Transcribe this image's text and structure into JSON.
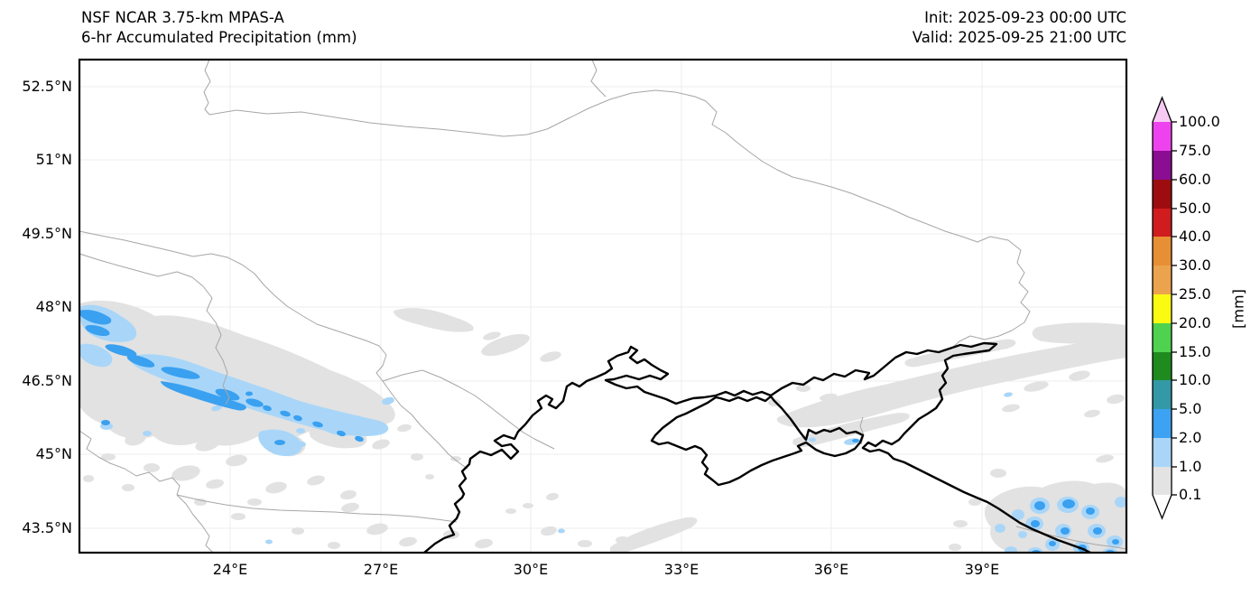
{
  "header": {
    "model_title": "NSF NCAR 3.75-km MPAS-A",
    "product_title": "6-hr Accumulated Precipitation (mm)",
    "init_time": "Init: 2025-09-23 00:00 UTC",
    "valid_time": "Valid: 2025-09-25 21:00 UTC"
  },
  "map_axes": {
    "lat_labels": [
      "52.5°N",
      "51°N",
      "49.5°N",
      "48°N",
      "46.5°N",
      "45°N",
      "43.5°N"
    ],
    "lon_labels": [
      "24°E",
      "27°E",
      "30°E",
      "33°E",
      "36°E",
      "39°E"
    ]
  },
  "colorbar": {
    "unit": "[mm]",
    "tick_labels": [
      "100.0",
      "75.0",
      "60.0",
      "50.0",
      "40.0",
      "30.0",
      "25.0",
      "20.0",
      "15.0",
      "10.0",
      "5.0",
      "2.0",
      "1.0",
      "0.1"
    ],
    "levels_mm": [
      0.1,
      1.0,
      2.0,
      5.0,
      10.0,
      15.0,
      20.0,
      25.0,
      30.0,
      40.0,
      50.0,
      60.0,
      75.0,
      100.0
    ],
    "segment_colors_top_to_bottom": [
      "#ee42ee",
      "#8a0d92",
      "#9d0d10",
      "#d01c1e",
      "#e78f35",
      "#eca34d",
      "#fbfb12",
      "#4fd24f",
      "#1f8b1f",
      "#3499a6",
      "#3ca2f1",
      "#a9d6f8",
      "#e3e3e3"
    ],
    "over_color": "#f7c9f3",
    "under_color": "#ffffff"
  },
  "map_palette": {
    "precip_trace": "#e2e2e2",
    "precip_light": "#a9d6f8",
    "precip_moderate": "#3aa0f0",
    "coastline": "#000000",
    "border": "#a6a6a6",
    "gridline": "#ececec",
    "frame": "#000000"
  },
  "chart_data": {
    "type": "map",
    "title": "6-hr Accumulated Precipitation (mm)",
    "colorbar_levels_mm": [
      0.1,
      1,
      2,
      5,
      10,
      15,
      20,
      25,
      30,
      40,
      50,
      60,
      75,
      100
    ],
    "lat_range_deg_n": [
      43.0,
      53.0
    ],
    "lon_range_deg_e": [
      21.0,
      42.0
    ],
    "visible_precipitation_regions": [
      {
        "area": "Carpathians / western edge (~21-27°E, 45-48.5°N)",
        "band_mm": "0.1 to 5"
      },
      {
        "area": "Sea of Azov and northeast streaks",
        "band_mm": "0.1 to 1"
      },
      {
        "area": "Caucasus coast, southeast corner",
        "band_mm": "0.1 to 5"
      },
      {
        "area": "Scattered cells over Balkans and south of Crimea",
        "band_mm": "0.1 to 2"
      }
    ]
  }
}
